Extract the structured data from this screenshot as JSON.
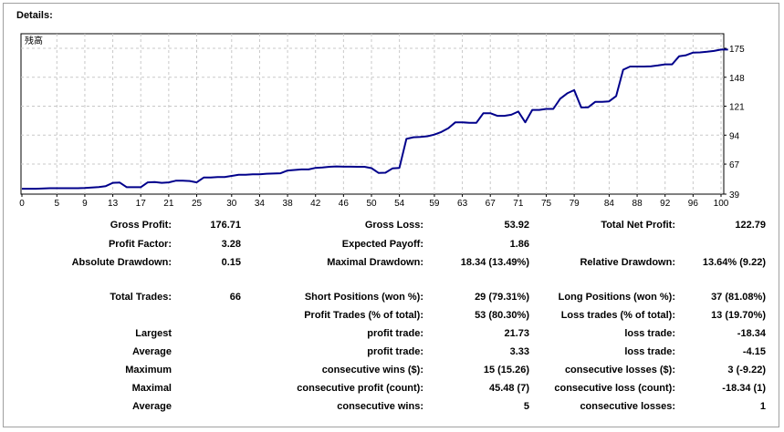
{
  "header": {
    "title": "Details:"
  },
  "chart_data": {
    "type": "line",
    "title": "",
    "legend": "残高",
    "line_color": "#00008b",
    "grid": true,
    "x_ticks": [
      0,
      5,
      9,
      13,
      17,
      21,
      25,
      30,
      34,
      38,
      42,
      46,
      50,
      54,
      59,
      63,
      67,
      71,
      75,
      79,
      84,
      88,
      92,
      96,
      100
    ],
    "y_ticks": [
      39,
      67,
      94,
      121,
      148,
      175
    ],
    "xlim": [
      0,
      102
    ],
    "ylim": [
      39,
      181
    ],
    "series": [
      {
        "values": [
          [
            0,
            44
          ],
          [
            2,
            44
          ],
          [
            4,
            44.5
          ],
          [
            6,
            44.5
          ],
          [
            8,
            44.5
          ],
          [
            9,
            44.8
          ],
          [
            10,
            45.2
          ],
          [
            11,
            45.6
          ],
          [
            12,
            46.5
          ],
          [
            13,
            49.5
          ],
          [
            14,
            49.8
          ],
          [
            15,
            45.5
          ],
          [
            16,
            45.5
          ],
          [
            17,
            45.5
          ],
          [
            18,
            50
          ],
          [
            19,
            50.2
          ],
          [
            20,
            49.5
          ],
          [
            21,
            50
          ],
          [
            22,
            51.5
          ],
          [
            23,
            51.5
          ],
          [
            24,
            51.2
          ],
          [
            25,
            50
          ],
          [
            26,
            54.5
          ],
          [
            27,
            54.5
          ],
          [
            28,
            55
          ],
          [
            29,
            55
          ],
          [
            30,
            56
          ],
          [
            31,
            57
          ],
          [
            32,
            57
          ],
          [
            33,
            57.5
          ],
          [
            34,
            57.5
          ],
          [
            35,
            58
          ],
          [
            36,
            58.2
          ],
          [
            37,
            58.5
          ],
          [
            38,
            61
          ],
          [
            39,
            61.5
          ],
          [
            40,
            62
          ],
          [
            41,
            62
          ],
          [
            42,
            63.5
          ],
          [
            43,
            63.8
          ],
          [
            44,
            64.5
          ],
          [
            45,
            64.8
          ],
          [
            46,
            64.6
          ],
          [
            47,
            64.6
          ],
          [
            48,
            64.5
          ],
          [
            49,
            64.5
          ],
          [
            50,
            63.2
          ],
          [
            51,
            58.8
          ],
          [
            52,
            59
          ],
          [
            53,
            63
          ],
          [
            54,
            63.5
          ],
          [
            55,
            90.5
          ],
          [
            56,
            92
          ],
          [
            57,
            92.3
          ],
          [
            58,
            93
          ],
          [
            59,
            94.5
          ],
          [
            60,
            97
          ],
          [
            61,
            100.5
          ],
          [
            62,
            106
          ],
          [
            63,
            106
          ],
          [
            64,
            105.5
          ],
          [
            65,
            105.5
          ],
          [
            66,
            114.5
          ],
          [
            67,
            114.5
          ],
          [
            68,
            112
          ],
          [
            69,
            112
          ],
          [
            70,
            113
          ],
          [
            71,
            116
          ],
          [
            72,
            106
          ],
          [
            73,
            117.5
          ],
          [
            74,
            117.5
          ],
          [
            75,
            118.5
          ],
          [
            76,
            118.5
          ],
          [
            77,
            128
          ],
          [
            78,
            133
          ],
          [
            79,
            136
          ],
          [
            80,
            119.8
          ],
          [
            81,
            120
          ],
          [
            82,
            125
          ],
          [
            83,
            125
          ],
          [
            84,
            125.5
          ],
          [
            85,
            130.5
          ],
          [
            86,
            155
          ],
          [
            87,
            158
          ],
          [
            88,
            158
          ],
          [
            89,
            158
          ],
          [
            90,
            158.2
          ],
          [
            91,
            159
          ],
          [
            92,
            160
          ],
          [
            93,
            160
          ],
          [
            94,
            167.5
          ],
          [
            95,
            168.5
          ],
          [
            96,
            171
          ],
          [
            97,
            171.2
          ],
          [
            98,
            171.8
          ],
          [
            99,
            172.5
          ],
          [
            100,
            173.8
          ],
          [
            101,
            173.8
          ]
        ]
      }
    ]
  },
  "stats": {
    "gross_profit": {
      "label": "Gross Profit:",
      "value": "176.71"
    },
    "gross_loss": {
      "label": "Gross Loss:",
      "value": "53.92"
    },
    "total_net_profit": {
      "label": "Total Net Profit:",
      "value": "122.79"
    },
    "profit_factor": {
      "label": "Profit Factor:",
      "value": "3.28"
    },
    "expected_payoff": {
      "label": "Expected Payoff:",
      "value": "1.86"
    },
    "absolute_drawdown": {
      "label": "Absolute Drawdown:",
      "value": "0.15"
    },
    "maximal_drawdown": {
      "label": "Maximal Drawdown:",
      "value": "18.34 (13.49%)"
    },
    "relative_drawdown": {
      "label": "Relative Drawdown:",
      "value": "13.64% (9.22)"
    },
    "total_trades": {
      "label": "Total Trades:",
      "value": "66"
    },
    "short_positions": {
      "label": "Short Positions (won %):",
      "value": "29 (79.31%)"
    },
    "long_positions": {
      "label": "Long Positions (won %):",
      "value": "37 (81.08%)"
    },
    "profit_trades": {
      "label": "Profit Trades (% of total):",
      "value": "53 (80.30%)"
    },
    "loss_trades": {
      "label": "Loss trades (% of total):",
      "value": "13 (19.70%)"
    },
    "largest_profit": {
      "group": "Largest",
      "label": "profit trade:",
      "value": "21.73"
    },
    "largest_loss": {
      "label": "loss trade:",
      "value": "-18.34"
    },
    "average_profit": {
      "group": "Average",
      "label": "profit trade:",
      "value": "3.33"
    },
    "average_loss": {
      "label": "loss trade:",
      "value": "-4.15"
    },
    "max_consec_wins": {
      "group": "Maximum",
      "label": "consecutive wins ($):",
      "value": "15 (15.26)"
    },
    "max_consec_losses": {
      "label": "consecutive losses ($):",
      "value": "3 (-9.22)"
    },
    "maximal_consec_profit": {
      "group": "Maximal",
      "label": "consecutive profit (count):",
      "value": "45.48 (7)"
    },
    "maximal_consec_loss": {
      "label": "consecutive loss (count):",
      "value": "-18.34 (1)"
    },
    "avg_consec_wins": {
      "group": "Average",
      "label": "consecutive wins:",
      "value": "5"
    },
    "avg_consec_losses": {
      "label": "consecutive losses:",
      "value": "1"
    }
  }
}
